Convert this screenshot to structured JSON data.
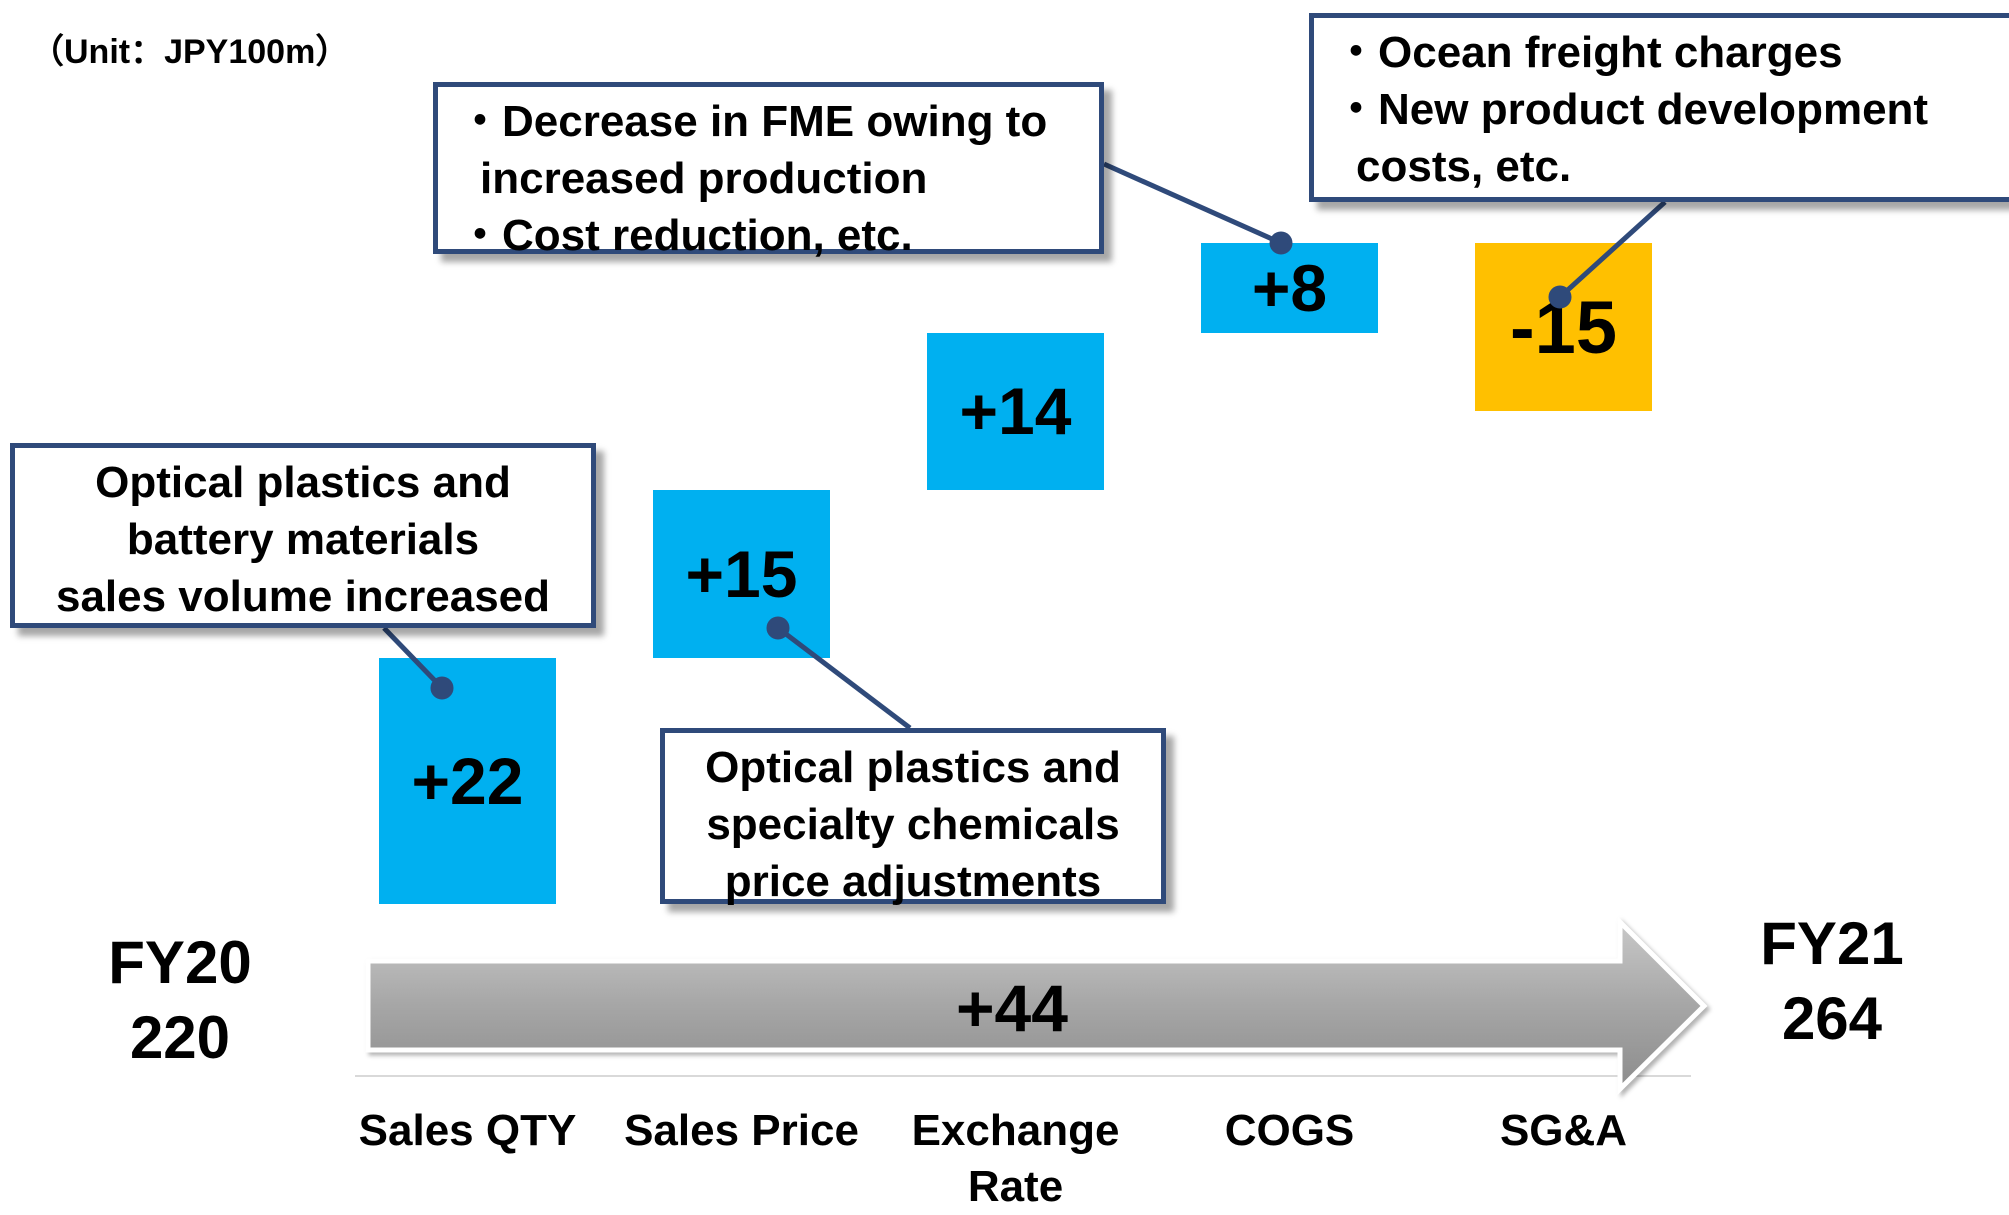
{
  "chart_data": {
    "type": "waterfall",
    "unit_label": "（Unit：JPY100m）",
    "start": {
      "label": "FY20",
      "value": 220
    },
    "end": {
      "label": "FY21",
      "value": 264
    },
    "total_change": {
      "value": 44,
      "label": "+44"
    },
    "categories": [
      "Sales QTY",
      "Sales Price",
      "Exchange Rate",
      "COGS",
      "SG&A"
    ],
    "values": [
      22,
      15,
      14,
      8,
      -15
    ],
    "value_labels": [
      "+22",
      "+15",
      "+14",
      "+8",
      "-15"
    ],
    "colors": [
      "#00b0f0",
      "#00b0f0",
      "#00b0f0",
      "#00b0f0",
      "#ffc000"
    ],
    "annotations": [
      {
        "lines": [
          "・Decrease in FME owing to",
          "increased production",
          "・Cost reduction, etc."
        ]
      },
      {
        "lines": [
          "・Ocean freight charges",
          "・New product development",
          "costs, etc."
        ]
      },
      {
        "lines": [
          "Optical plastics and",
          "battery materials",
          "sales volume increased"
        ]
      },
      {
        "lines": [
          "Optical plastics and",
          "specialty chemicals",
          "price adjustments"
        ]
      }
    ]
  }
}
